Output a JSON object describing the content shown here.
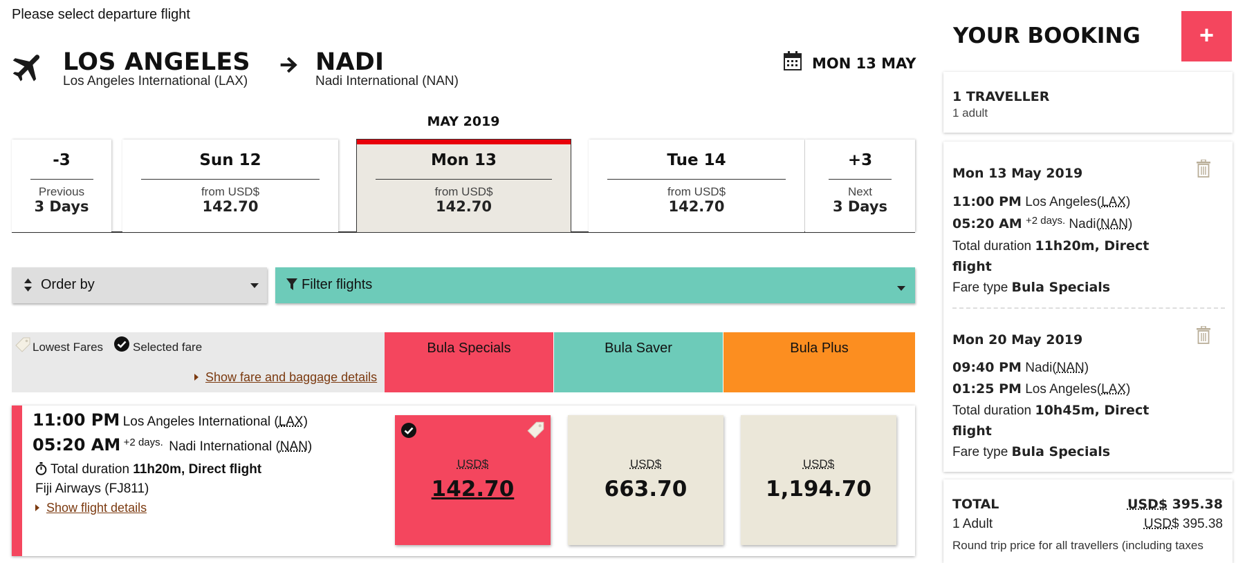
{
  "heading": "Please select departure flight",
  "route": {
    "origin_city": "LOS ANGELES",
    "origin_airport": "Los Angeles International (LAX)",
    "dest_city": "NADI",
    "dest_airport": "Nadi International (NAN)",
    "date": "MON 13 MAY",
    "month": "MAY 2019"
  },
  "date_strip": [
    {
      "title": "-3",
      "sub": "Previous",
      "value": "3 Days"
    },
    {
      "title": "Sun 12",
      "sub": "from USD$",
      "value": "142.70"
    },
    {
      "title": "Mon 13",
      "sub": "from USD$",
      "value": "142.70",
      "selected": true
    },
    {
      "title": "Tue 14",
      "sub": "from USD$",
      "value": "142.70"
    },
    {
      "title": "+3",
      "sub": "Next",
      "value": "3 Days"
    }
  ],
  "controls": {
    "order_by": "Order by",
    "filter": "Filter flights"
  },
  "fare_header": {
    "lowest": "Lowest Fares",
    "selected": "Selected fare",
    "details_link": "Show fare and baggage details",
    "columns": [
      {
        "name": "Bula Specials",
        "color": "#f4465e"
      },
      {
        "name": "Bula Saver",
        "color": "#6dcbb9"
      },
      {
        "name": "Bula Plus",
        "color": "#fc8e20"
      }
    ]
  },
  "flight": {
    "dep_time": "11:00 PM",
    "dep_place": "Los Angeles International",
    "dep_code": "LAX",
    "arr_time": "05:20 AM",
    "arr_plus": "+2 days.",
    "arr_place": "Nadi International",
    "arr_code": "NAN",
    "duration_label": "Total duration",
    "duration_value": "11h20m, Direct flight",
    "carrier": "Fiji Airways (FJ811)",
    "details_link": "Show flight details",
    "fares": [
      {
        "currency": "USD$",
        "price": "142.70",
        "selected": true,
        "color": "#f4465e"
      },
      {
        "currency": "USD$",
        "price": "663.70",
        "color": "#ebe7d9"
      },
      {
        "currency": "USD$",
        "price": "1,194.70",
        "color": "#ebe7d9"
      }
    ]
  },
  "booking": {
    "title": "YOUR BOOKING",
    "add_label": "+",
    "travellers_title": "1 TRAVELLER",
    "travellers_sub": "1 adult",
    "legs": [
      {
        "date": "Mon 13 May 2019",
        "dep_time": "11:00 PM",
        "dep_place": "Los Angeles",
        "dep_code": "LAX",
        "arr_time": "05:20 AM",
        "arr_plus": "+2 days.",
        "arr_place": "Nadi",
        "arr_code": "NAN",
        "duration_label": "Total duration",
        "duration_value": "11h20m, Direct",
        "duration_value2": "flight",
        "fare_label": "Fare type",
        "fare_value": "Bula Specials"
      },
      {
        "date": "Mon 20 May 2019",
        "dep_time": "09:40 PM",
        "dep_place": "Nadi",
        "dep_code": "NAN",
        "arr_time": "01:25 PM",
        "arr_plus": "",
        "arr_place": "Los Angeles",
        "arr_code": "LAX",
        "duration_label": "Total duration",
        "duration_value": "10h45m, Direct",
        "duration_value2": "flight",
        "fare_label": "Fare type",
        "fare_value": "Bula Specials"
      }
    ],
    "total_label": "TOTAL",
    "total_currency": "USD$",
    "total_amount": "395.38",
    "adult_label": "1 Adult",
    "adult_currency": "USD$",
    "adult_amount": "395.38",
    "note": "Round trip price for all travellers (including taxes"
  }
}
